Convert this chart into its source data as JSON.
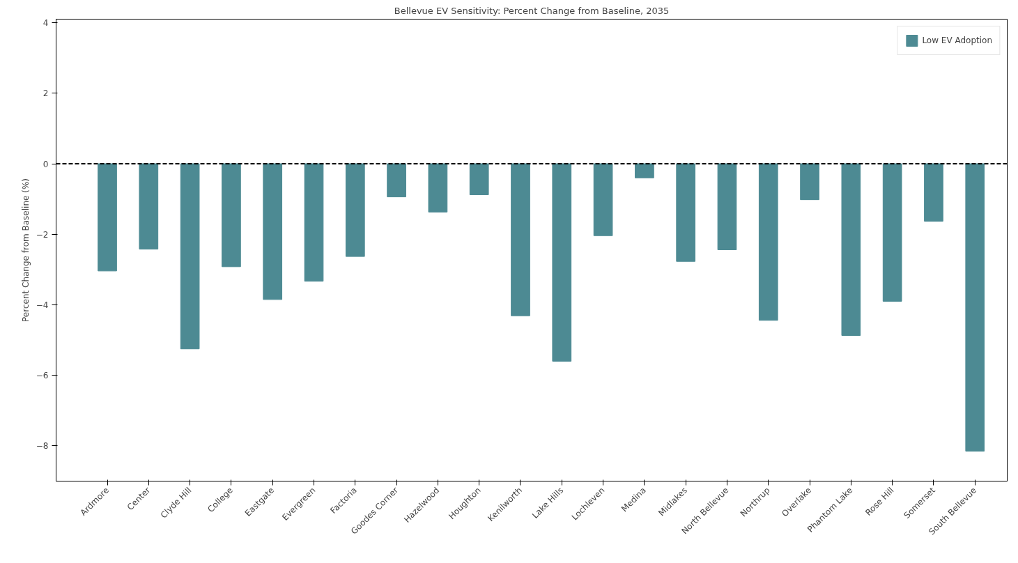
{
  "chart_data": {
    "type": "bar",
    "title": "Bellevue EV Sensitivity: Percent Change from Baseline, 2035",
    "ylabel": "Percent Change from Baseline (%)",
    "categories": [
      "Ardmore",
      "Center",
      "Clyde Hill",
      "College",
      "Eastgate",
      "Evergreen",
      "Factoria",
      "Goodes Corner",
      "Hazelwood",
      "Houghton",
      "Kenilworth",
      "Lake Hills",
      "Lochleven",
      "Medina",
      "Midlakes",
      "North Bellevue",
      "Northrup",
      "Overlake",
      "Phantom Lake",
      "Rose Hill",
      "Somerset",
      "South Bellevue"
    ],
    "series": [
      {
        "name": "Low EV Adoption",
        "color": "#4d8a93",
        "values": [
          -3.04,
          -2.42,
          -5.25,
          -2.92,
          -3.85,
          -3.33,
          -2.63,
          -0.94,
          -1.37,
          -0.88,
          -4.31,
          -5.6,
          -2.04,
          -0.4,
          -2.77,
          -2.44,
          -4.44,
          -1.02,
          -4.87,
          -3.9,
          -1.63,
          -8.15
        ]
      }
    ],
    "ylim": [
      -9,
      4.1
    ],
    "yticks": [
      -8,
      -6,
      -4,
      -2,
      0,
      2,
      4
    ],
    "ref_lines": [
      {
        "axis": "y",
        "value": 0,
        "color": "#000000",
        "line_style": "dashed"
      }
    ],
    "legend": "top right",
    "grid": false
  }
}
